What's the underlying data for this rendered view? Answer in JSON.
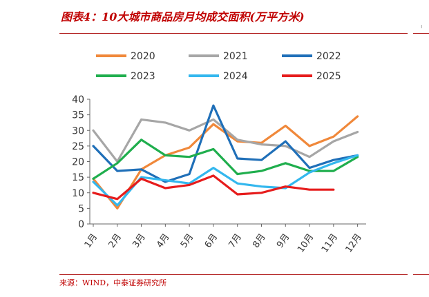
{
  "title": "图表4：10大城市商品房月均成交面积(万平方米)",
  "source": "来源：WIND，中泰证券研究所",
  "chart_data": {
    "type": "line",
    "title": "",
    "xlabel": "",
    "ylabel": "",
    "categories": [
      "1月",
      "2月",
      "3月",
      "4月",
      "5月",
      "6月",
      "7月",
      "8月",
      "9月",
      "10月",
      "11月",
      "12月"
    ],
    "ylim": [
      0,
      40
    ],
    "yticks": [
      0,
      5,
      10,
      15,
      20,
      25,
      30,
      35,
      40
    ],
    "grid": false,
    "legend_position": "top",
    "series": [
      {
        "name": "2020",
        "color": "#f0883a",
        "values": [
          14.5,
          5.0,
          17.5,
          22.0,
          24.5,
          32.0,
          26.5,
          26.0,
          31.5,
          25.0,
          28.0,
          34.5
        ]
      },
      {
        "name": "2021",
        "color": "#a6a6a6",
        "values": [
          30.0,
          20.0,
          33.5,
          32.5,
          30.0,
          33.5,
          27.0,
          25.5,
          25.0,
          21.5,
          26.5,
          29.5
        ]
      },
      {
        "name": "2022",
        "color": "#1f6fb8",
        "values": [
          25.0,
          17.0,
          17.5,
          13.5,
          16.0,
          38.0,
          21.0,
          20.5,
          26.5,
          18.0,
          20.5,
          22.0
        ]
      },
      {
        "name": "2023",
        "color": "#1fae4d",
        "values": [
          14.5,
          19.5,
          27.0,
          22.0,
          21.5,
          24.0,
          16.0,
          17.0,
          19.5,
          17.0,
          17.0,
          21.5
        ]
      },
      {
        "name": "2024",
        "color": "#33b7ee",
        "values": [
          13.5,
          6.0,
          15.0,
          14.0,
          13.0,
          18.0,
          13.0,
          12.0,
          11.5,
          16.5,
          19.5,
          22.0
        ]
      },
      {
        "name": "2025",
        "color": "#e61c1c",
        "values": [
          10.0,
          8.0,
          14.5,
          11.5,
          12.5,
          15.5,
          9.5,
          10.0,
          12.0,
          11.0,
          11.0,
          null
        ]
      }
    ]
  }
}
